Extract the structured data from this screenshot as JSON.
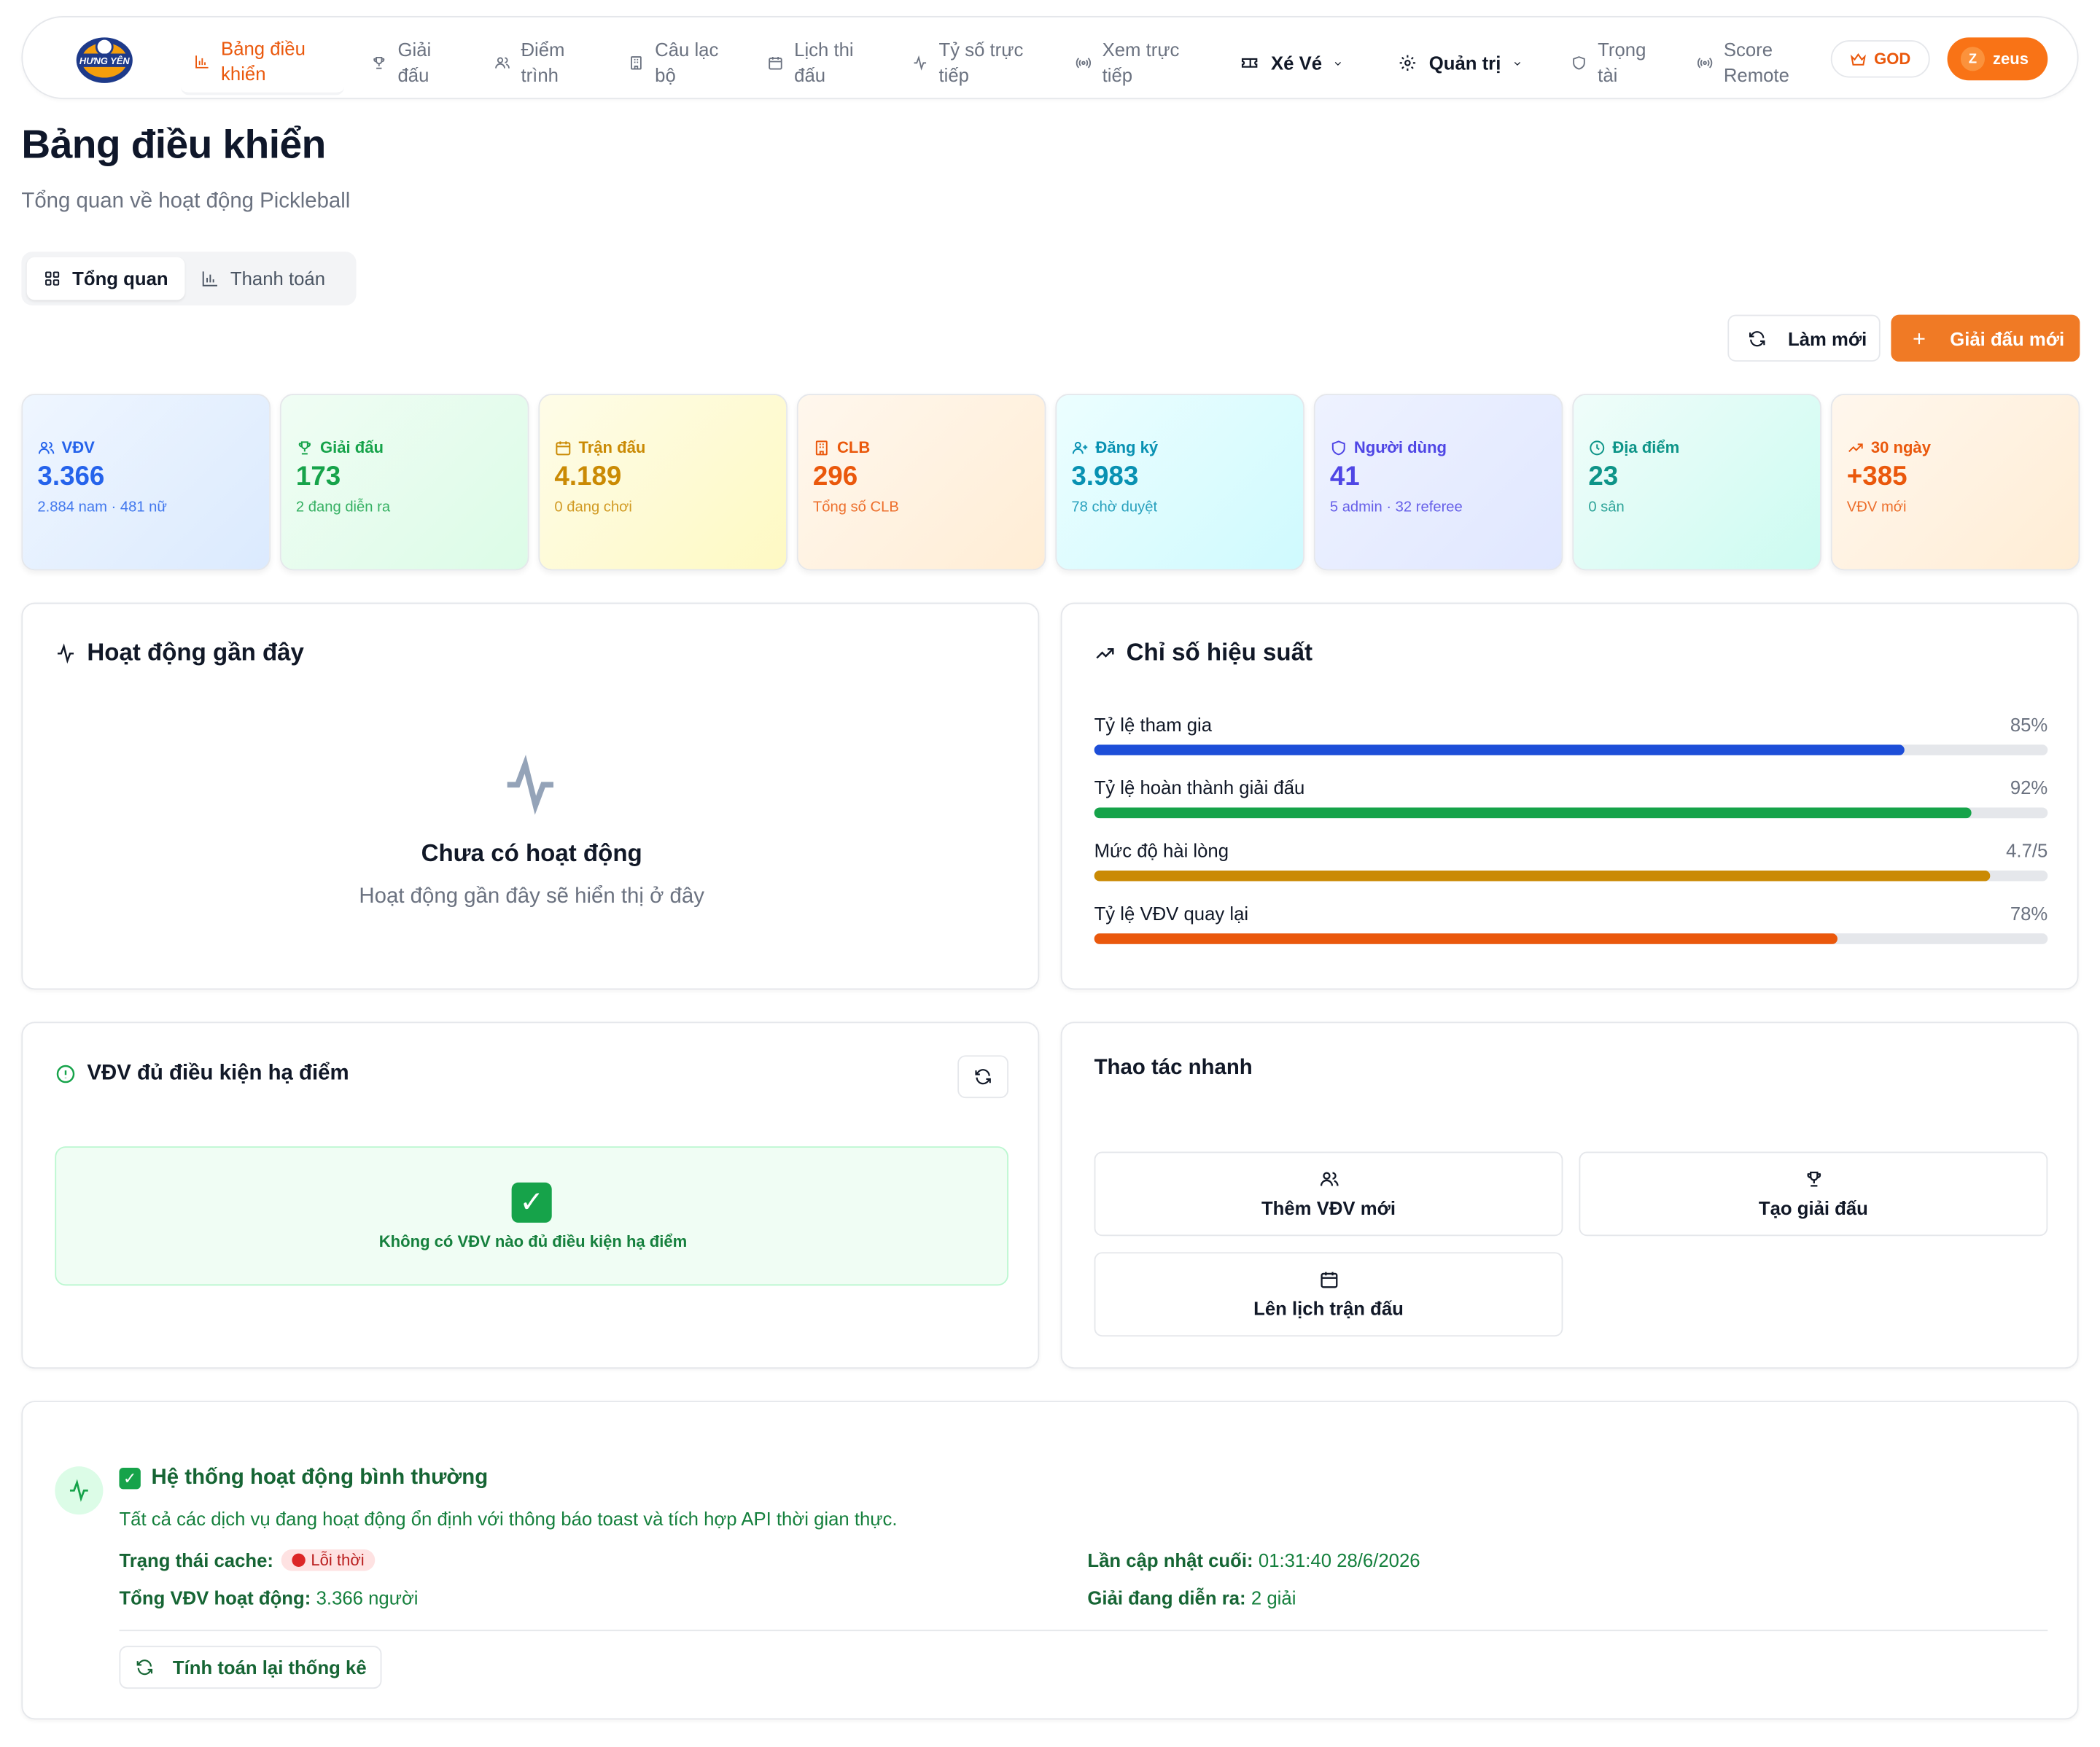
{
  "brand": {
    "logo_text": "HƯNG YÊN",
    "accent": "#ea580c"
  },
  "nav": {
    "items": [
      {
        "label": "Bảng điều khiển",
        "icon": "bar-chart-icon",
        "active": true
      },
      {
        "label": "Giải đấu",
        "icon": "trophy-icon"
      },
      {
        "label": "Điểm trình",
        "icon": "users-icon"
      },
      {
        "label": "Câu lạc bộ",
        "icon": "building-icon"
      },
      {
        "label": "Lịch thi đấu",
        "icon": "calendar-icon"
      },
      {
        "label": "Tỷ số trực tiếp",
        "icon": "activity-icon"
      },
      {
        "label": "Xem trực tiếp",
        "icon": "broadcast-icon"
      },
      {
        "label": "Xé Vé",
        "icon": "ticket-icon"
      },
      {
        "label": "Quản trị",
        "icon": "gear-icon"
      },
      {
        "label": "Trọng tài",
        "icon": "shield-icon"
      },
      {
        "label": "Score Remote",
        "icon": "broadcast-icon"
      }
    ],
    "role_badge": "GOD",
    "user": {
      "initial": "Z",
      "name": "zeus"
    }
  },
  "header": {
    "title": "Bảng điều khiển",
    "subtitle": "Tổng quan về hoạt động Pickleball",
    "tabs": [
      "Tổng quan",
      "Thanh toán"
    ],
    "refresh_label": "Làm mới",
    "new_tournament_label": "Giải đấu mới"
  },
  "stats": [
    {
      "label": "VĐV",
      "value": "3.366",
      "sub": "2.884 nam · 481 nữ",
      "color": "#2563eb",
      "icon": "users-icon"
    },
    {
      "label": "Giải đấu",
      "value": "173",
      "sub": "2 đang diễn ra",
      "color": "#16a34a",
      "icon": "trophy-icon"
    },
    {
      "label": "Trận đấu",
      "value": "4.189",
      "sub": "0 đang chơi",
      "color": "#ca8a04",
      "icon": "calendar-icon"
    },
    {
      "label": "CLB",
      "value": "296",
      "sub": "Tổng số CLB",
      "color": "#ea580c",
      "icon": "building-icon"
    },
    {
      "label": "Đăng ký",
      "value": "3.983",
      "sub": "78 chờ duyệt",
      "color": "#0891b2",
      "icon": "user-plus-icon"
    },
    {
      "label": "Người dùng",
      "value": "41",
      "sub": "5 admin · 32 referee",
      "color": "#4f46e5",
      "icon": "shield-icon"
    },
    {
      "label": "Địa điểm",
      "value": "23",
      "sub": "0 sân",
      "color": "#0d9488",
      "icon": "clock-icon"
    },
    {
      "label": "30 ngày",
      "value": "+385",
      "sub": "VĐV mới",
      "color": "#ea580c",
      "icon": "trending-up-icon"
    }
  ],
  "activity": {
    "title": "Hoạt động gần đây",
    "empty_title": "Chưa có hoạt động",
    "empty_sub": "Hoạt động gần đây sẽ hiển thị ở đây"
  },
  "performance": {
    "title": "Chỉ số hiệu suất",
    "metrics": [
      {
        "label": "Tỷ lệ tham gia",
        "display": "85%",
        "fraction": 0.85,
        "color": "#1d4ed8"
      },
      {
        "label": "Tỷ lệ hoàn thành giải đấu",
        "display": "92%",
        "fraction": 0.92,
        "color": "#16a34a"
      },
      {
        "label": "Mức độ hài lòng",
        "display": "4.7/5",
        "fraction": 0.94,
        "color": "#ca8a04"
      },
      {
        "label": "Tỷ lệ VĐV quay lại",
        "display": "78%",
        "fraction": 0.78,
        "color": "#ea580c"
      }
    ]
  },
  "eligible": {
    "title": "VĐV đủ điều kiện hạ điểm",
    "empty_text": "Không có VĐV nào đủ điều kiện hạ điểm"
  },
  "quick_actions": {
    "title": "Thao tác nhanh",
    "items": [
      "Thêm VĐV mới",
      "Tạo giải đấu",
      "Lên lịch trận đấu"
    ]
  },
  "system": {
    "title": "Hệ thống hoạt động bình thường",
    "desc": "Tất cả các dịch vụ đang hoạt động ổn định với thông báo toast và tích hợp API thời gian thực.",
    "cache_label": "Trạng thái cache:",
    "cache_value": "Lỗi thời",
    "last_update_label": "Lần cập nhật cuối:",
    "last_update_value": "01:31:40 28/6/2026",
    "active_label": "Tổng VĐV hoạt động:",
    "active_value": "3.366 người",
    "ongoing_label": "Giải đang diễn ra:",
    "ongoing_value": "2 giải",
    "recalc_label": "Tính toán lại thống kê"
  }
}
